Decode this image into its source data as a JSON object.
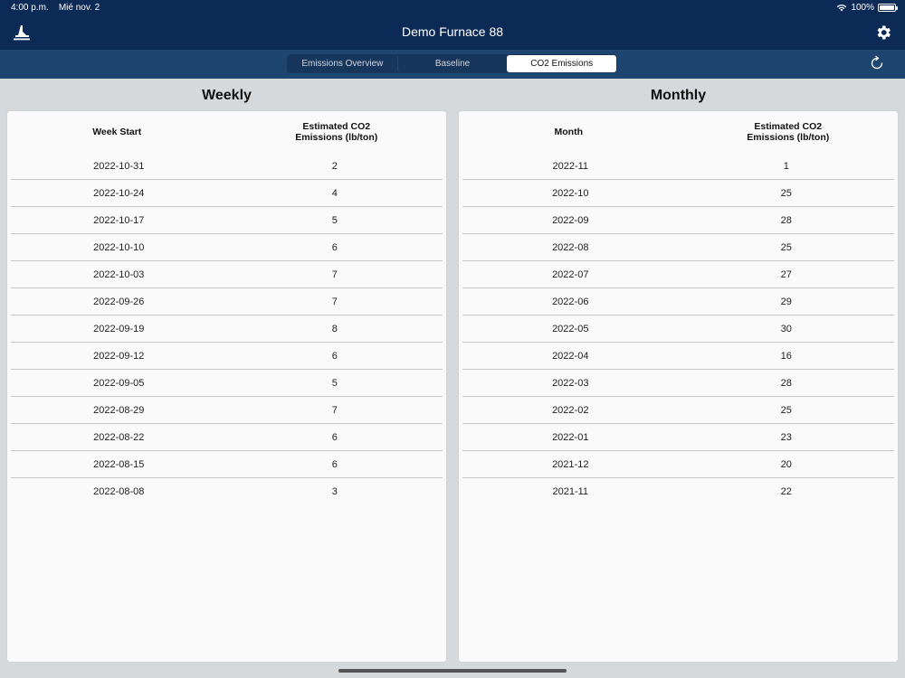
{
  "status": {
    "time": "4:00 p.m.",
    "date": "Mié nov. 2",
    "battery": "100%"
  },
  "header": {
    "title": "Demo Furnace 88"
  },
  "tabs": [
    {
      "label": "Emissions Overview",
      "active": false
    },
    {
      "label": "Baseline",
      "active": false
    },
    {
      "label": "CO2 Emissions",
      "active": true
    }
  ],
  "weekly": {
    "heading": "Weekly",
    "columns": [
      "Week Start",
      "Estimated CO2\nEmissions (lb/ton)"
    ],
    "rows": [
      [
        "2022-10-31",
        "2"
      ],
      [
        "2022-10-24",
        "4"
      ],
      [
        "2022-10-17",
        "5"
      ],
      [
        "2022-10-10",
        "6"
      ],
      [
        "2022-10-03",
        "7"
      ],
      [
        "2022-09-26",
        "7"
      ],
      [
        "2022-09-19",
        "8"
      ],
      [
        "2022-09-12",
        "6"
      ],
      [
        "2022-09-05",
        "5"
      ],
      [
        "2022-08-29",
        "7"
      ],
      [
        "2022-08-22",
        "6"
      ],
      [
        "2022-08-15",
        "6"
      ],
      [
        "2022-08-08",
        "3"
      ]
    ]
  },
  "monthly": {
    "heading": "Monthly",
    "columns": [
      "Month",
      "Estimated CO2\nEmissions (lb/ton)"
    ],
    "rows": [
      [
        "2022-11",
        "1"
      ],
      [
        "2022-10",
        "25"
      ],
      [
        "2022-09",
        "28"
      ],
      [
        "2022-08",
        "25"
      ],
      [
        "2022-07",
        "27"
      ],
      [
        "2022-06",
        "29"
      ],
      [
        "2022-05",
        "30"
      ],
      [
        "2022-04",
        "16"
      ],
      [
        "2022-03",
        "28"
      ],
      [
        "2022-02",
        "25"
      ],
      [
        "2022-01",
        "23"
      ],
      [
        "2021-12",
        "20"
      ],
      [
        "2021-11",
        "22"
      ]
    ]
  }
}
